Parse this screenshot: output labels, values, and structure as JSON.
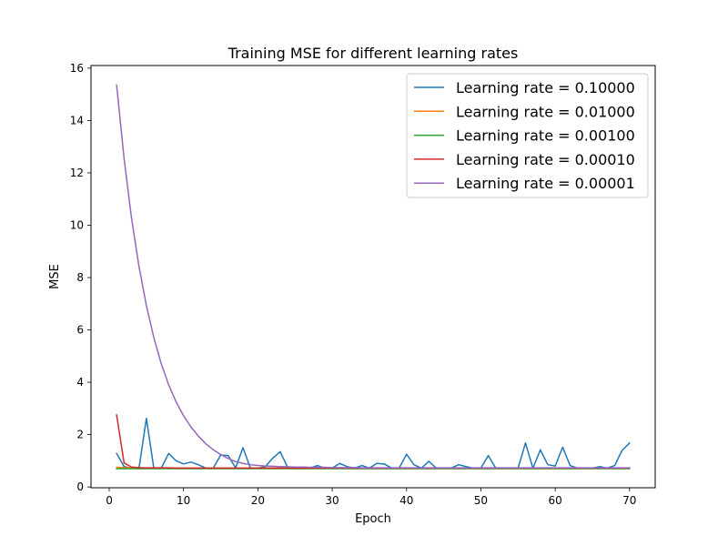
{
  "chart_data": {
    "type": "line",
    "title": "Training MSE for different learning rates",
    "xlabel": "Epoch",
    "ylabel": "MSE",
    "xlim": [
      -2.45,
      73.45
    ],
    "ylim": [
      -0.03,
      16.1
    ],
    "xticks": [
      0,
      10,
      20,
      30,
      40,
      50,
      60,
      70
    ],
    "yticks": [
      0,
      2,
      4,
      6,
      8,
      10,
      12,
      14,
      16
    ],
    "grid": false,
    "legend_position": "upper right",
    "x": [
      1,
      2,
      3,
      4,
      5,
      6,
      7,
      8,
      9,
      10,
      11,
      12,
      13,
      14,
      15,
      16,
      17,
      18,
      19,
      20,
      21,
      22,
      23,
      24,
      25,
      26,
      27,
      28,
      29,
      30,
      31,
      32,
      33,
      34,
      35,
      36,
      37,
      38,
      39,
      40,
      41,
      42,
      43,
      44,
      45,
      46,
      47,
      48,
      49,
      50,
      51,
      52,
      53,
      54,
      55,
      56,
      57,
      58,
      59,
      60,
      61,
      62,
      63,
      64,
      65,
      66,
      67,
      68,
      69,
      70
    ],
    "series": [
      {
        "name": "Learning rate = 0.10000",
        "color": "#1f77b4",
        "values": [
          1.28,
          0.78,
          0.72,
          0.7,
          2.62,
          0.72,
          0.72,
          1.28,
          1.0,
          0.88,
          0.95,
          0.85,
          0.72,
          0.72,
          1.22,
          1.2,
          0.73,
          1.5,
          0.72,
          0.72,
          0.78,
          1.1,
          1.35,
          0.75,
          0.72,
          0.72,
          0.72,
          0.82,
          0.72,
          0.72,
          0.9,
          0.78,
          0.72,
          0.82,
          0.72,
          0.9,
          0.88,
          0.72,
          0.72,
          1.25,
          0.85,
          0.72,
          0.98,
          0.72,
          0.72,
          0.72,
          0.85,
          0.78,
          0.72,
          0.72,
          1.2,
          0.72,
          0.72,
          0.72,
          0.72,
          1.68,
          0.72,
          1.42,
          0.85,
          0.8,
          1.52,
          0.82,
          0.72,
          0.72,
          0.72,
          0.78,
          0.72,
          0.82,
          1.4,
          1.68
        ]
      },
      {
        "name": "Learning rate = 0.01000",
        "color": "#ff7f0e",
        "values": [
          0.75,
          0.74,
          0.73,
          0.73,
          0.72,
          0.72,
          0.72,
          0.72,
          0.72,
          0.72,
          0.72,
          0.72,
          0.72,
          0.72,
          0.72,
          0.72,
          0.72,
          0.72,
          0.72,
          0.72,
          0.72,
          0.72,
          0.72,
          0.72,
          0.72,
          0.72,
          0.72,
          0.72,
          0.72,
          0.72,
          0.72,
          0.72,
          0.72,
          0.72,
          0.72,
          0.72,
          0.72,
          0.72,
          0.72,
          0.72,
          0.72,
          0.72,
          0.72,
          0.72,
          0.72,
          0.72,
          0.72,
          0.72,
          0.72,
          0.72,
          0.72,
          0.72,
          0.72,
          0.72,
          0.72,
          0.72,
          0.72,
          0.72,
          0.72,
          0.72,
          0.72,
          0.72,
          0.72,
          0.72,
          0.72,
          0.72,
          0.72,
          0.72,
          0.72,
          0.72
        ]
      },
      {
        "name": "Learning rate = 0.00100",
        "color": "#2ca02c",
        "values": [
          0.7,
          0.7,
          0.7,
          0.7,
          0.7,
          0.7,
          0.7,
          0.7,
          0.7,
          0.7,
          0.7,
          0.7,
          0.7,
          0.7,
          0.7,
          0.7,
          0.7,
          0.7,
          0.7,
          0.7,
          0.7,
          0.7,
          0.7,
          0.7,
          0.7,
          0.7,
          0.7,
          0.7,
          0.7,
          0.7,
          0.7,
          0.7,
          0.7,
          0.7,
          0.7,
          0.7,
          0.7,
          0.7,
          0.7,
          0.7,
          0.7,
          0.7,
          0.7,
          0.7,
          0.7,
          0.7,
          0.7,
          0.7,
          0.7,
          0.7,
          0.7,
          0.7,
          0.7,
          0.7,
          0.7,
          0.7,
          0.7,
          0.7,
          0.7,
          0.7,
          0.7,
          0.7,
          0.7,
          0.7,
          0.7,
          0.7,
          0.7,
          0.7,
          0.7,
          0.7
        ]
      },
      {
        "name": "Learning rate = 0.00010",
        "color": "#d62728",
        "values": [
          2.75,
          0.92,
          0.76,
          0.74,
          0.73,
          0.73,
          0.73,
          0.73,
          0.72,
          0.72,
          0.72,
          0.72,
          0.72,
          0.72,
          0.72,
          0.72,
          0.72,
          0.72,
          0.72,
          0.72,
          0.72,
          0.72,
          0.72,
          0.72,
          0.72,
          0.72,
          0.72,
          0.72,
          0.72,
          0.72,
          0.72,
          0.72,
          0.72,
          0.72,
          0.72,
          0.72,
          0.72,
          0.72,
          0.72,
          0.72,
          0.72,
          0.72,
          0.72,
          0.72,
          0.72,
          0.72,
          0.72,
          0.72,
          0.72,
          0.72,
          0.72,
          0.72,
          0.72,
          0.72,
          0.72,
          0.72,
          0.72,
          0.72,
          0.72,
          0.72,
          0.72,
          0.72,
          0.72,
          0.72,
          0.72,
          0.72,
          0.72,
          0.72,
          0.72,
          0.72
        ]
      },
      {
        "name": "Learning rate = 0.00001",
        "color": "#9467bd",
        "values": [
          15.35,
          12.55,
          10.28,
          8.43,
          6.93,
          5.71,
          4.71,
          3.9,
          3.25,
          2.72,
          2.29,
          1.94,
          1.65,
          1.42,
          1.24,
          1.09,
          0.97,
          0.9,
          0.85,
          0.82,
          0.8,
          0.79,
          0.78,
          0.77,
          0.76,
          0.76,
          0.75,
          0.75,
          0.75,
          0.74,
          0.74,
          0.74,
          0.74,
          0.73,
          0.73,
          0.73,
          0.73,
          0.73,
          0.73,
          0.73,
          0.73,
          0.73,
          0.73,
          0.73,
          0.73,
          0.73,
          0.73,
          0.73,
          0.73,
          0.73,
          0.73,
          0.73,
          0.73,
          0.73,
          0.73,
          0.73,
          0.73,
          0.73,
          0.73,
          0.73,
          0.73,
          0.73,
          0.73,
          0.73,
          0.73,
          0.73,
          0.73,
          0.73,
          0.73,
          0.73
        ]
      }
    ]
  }
}
